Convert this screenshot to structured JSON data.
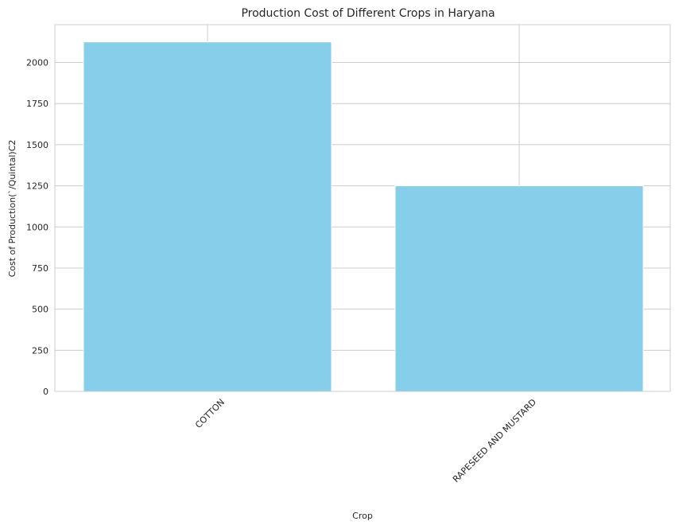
{
  "chart_data": {
    "type": "bar",
    "title": "Production Cost of Different Crops in Haryana",
    "xlabel": "Crop",
    "ylabel": "Cost of Production(`/Quintal)C2",
    "categories": [
      "COTTON",
      "RAPESEED AND MUSTARD"
    ],
    "values": [
      2125,
      1250
    ],
    "ylim": [
      0,
      2230
    ],
    "yticks": [
      0,
      250,
      500,
      750,
      1000,
      1250,
      1500,
      1750,
      2000
    ],
    "bar_color": "#87ceeb",
    "grid": true,
    "grid_color": "#cccccc",
    "x_tick_rotation": 45
  }
}
